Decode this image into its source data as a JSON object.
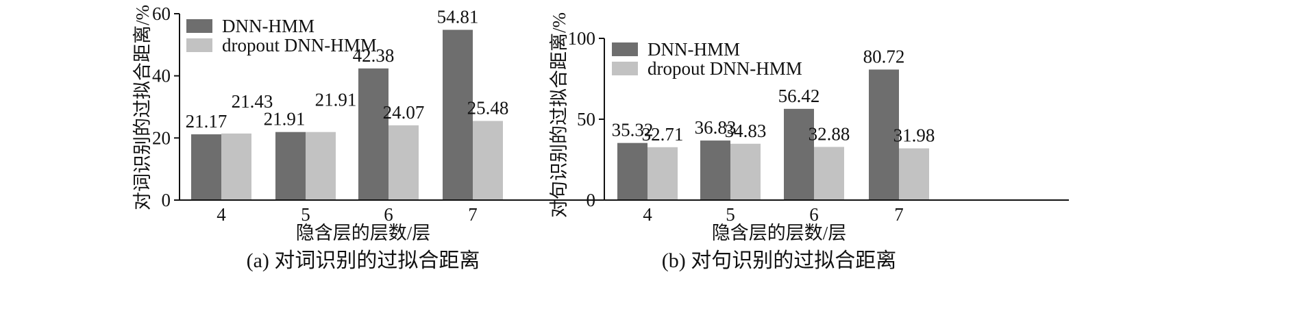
{
  "colors": {
    "dark": "#6e6e6e",
    "light": "#c2c2c2",
    "axis": "#111111"
  },
  "chart_data": [
    {
      "type": "bar",
      "caption": "(a) 对词识别的过拟合距离",
      "xlabel": "隐含层的层数/层",
      "ylabel": "对词识别的过拟合距离/%",
      "categories": [
        "4",
        "5",
        "6",
        "7"
      ],
      "ylim": [
        0,
        60
      ],
      "yticks": [
        "0",
        "20",
        "40",
        "60"
      ],
      "series": [
        {
          "name": "DNN-HMM",
          "values": [
            21.17,
            21.91,
            42.38,
            54.81
          ],
          "labels": [
            "21.17",
            "21.91",
            "42.38",
            "54.81"
          ]
        },
        {
          "name": "dropout DNN-HMM",
          "values": [
            21.43,
            21.91,
            24.07,
            25.48
          ],
          "labels": [
            "21.43",
            "21.91",
            "24.07",
            "25.48"
          ]
        }
      ],
      "grid": false,
      "legend": "top-left"
    },
    {
      "type": "bar",
      "caption": "(b) 对句识别的过拟合距离",
      "xlabel": "隐含层的层数/层",
      "ylabel": "对句识别的过拟合距离/%",
      "categories": [
        "4",
        "5",
        "6",
        "7"
      ],
      "ylim": [
        0,
        100
      ],
      "yticks": [
        "0",
        "50",
        "100"
      ],
      "series": [
        {
          "name": "DNN-HMM",
          "values": [
            35.32,
            36.83,
            56.42,
            80.72
          ],
          "labels": [
            "35.32",
            "36.83",
            "56.42",
            "80.72"
          ]
        },
        {
          "name": "dropout DNN-HMM",
          "values": [
            32.71,
            34.83,
            32.88,
            31.98
          ],
          "labels": [
            "32.71",
            "34.83",
            "32.88",
            "31.98"
          ]
        }
      ],
      "grid": false,
      "legend": "top-left"
    }
  ]
}
